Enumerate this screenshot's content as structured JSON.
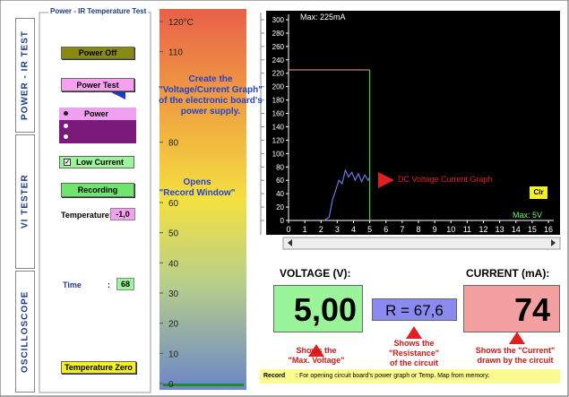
{
  "tabs": [
    "POWER - IR TEST",
    "VI TESTER",
    "OSCILLOSCOPE"
  ],
  "panel": {
    "title": "Power - IR Temperature Test",
    "power_off": "Power Off",
    "power_test": "Power Test",
    "mode_power": "Power",
    "low_current": "Low Current",
    "recording": "Recording",
    "temperature_label": "Temperature:",
    "temperature_value": "-1,0",
    "time_label": "Time",
    "time_sep": ":",
    "time_value": "68",
    "temperature_zero": "Temperature Zero"
  },
  "thermometer": {
    "ylim": [
      0,
      120
    ],
    "ticks": [
      {
        "value": 120,
        "label": "120°C"
      },
      110,
      80,
      60,
      50,
      40,
      30,
      20,
      10,
      0
    ]
  },
  "annotations": {
    "power_test": [
      "Create the",
      "\"Voltage/Current Graph\"",
      "of the electronic board's",
      "power supply."
    ],
    "recording": [
      "Opens",
      "\"Record Window\""
    ],
    "voltage": [
      "Shows the",
      "\"Max. Voltage\""
    ],
    "resistance": [
      "Shows the",
      "\"Resistance\"",
      "of the circuit"
    ],
    "current": [
      "Shows the \"Current\"",
      "drawn by the circuit"
    ]
  },
  "graph": {
    "max_label": "Max: 225mA",
    "max_voltage_label": "Max: 5V",
    "clear": "Clr",
    "callout": "DC Voltage Current Graph",
    "xlim": [
      0,
      16
    ],
    "ylim": [
      0,
      300
    ],
    "xticks": [
      0,
      1,
      2,
      3,
      4,
      5,
      6,
      7,
      8,
      9,
      10,
      11,
      12,
      13,
      14,
      15,
      16
    ],
    "yticks": [
      0,
      20,
      40,
      60,
      80,
      100,
      120,
      140,
      160,
      180,
      200,
      220,
      240,
      260,
      280,
      300
    ],
    "max_current": 225,
    "max_voltage": 5,
    "trace": {
      "x": [
        2.2,
        2.5,
        2.7,
        2.9,
        3.1,
        3.3,
        3.5,
        3.7,
        3.9,
        4.1,
        4.3,
        4.5,
        4.7,
        4.9,
        5
      ],
      "y": [
        0,
        5,
        30,
        45,
        60,
        55,
        75,
        65,
        72,
        60,
        70,
        58,
        68,
        60,
        65
      ]
    }
  },
  "readouts": {
    "voltage_label": "VOLTAGE (V):",
    "voltage": "5,00",
    "resistance": "R = 67,6",
    "current_label": "CURRENT (mA):",
    "current": "74"
  },
  "status": {
    "key": "Record",
    "text": ": For opening circuit board's power graph or Temp. Map from memory."
  }
}
